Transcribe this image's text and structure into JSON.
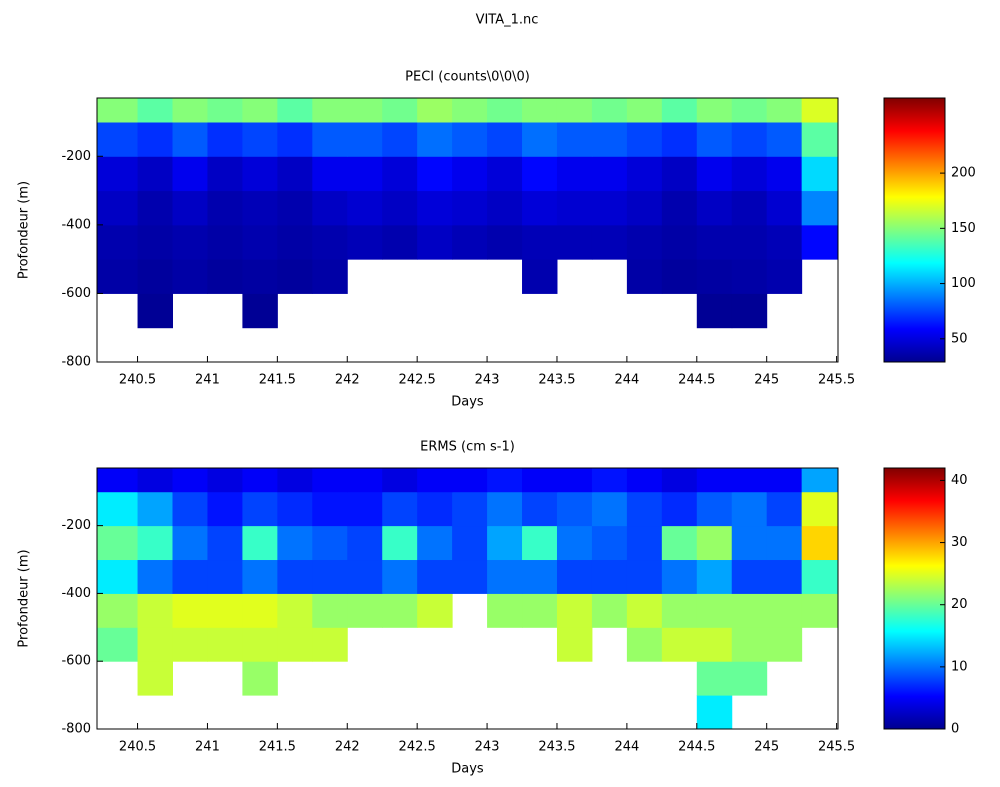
{
  "figure_title": "VITA_1.nc",
  "chart_data": [
    {
      "type": "heatmap",
      "title": "PECI (counts\\0\\0\\0)",
      "xlabel": "Days",
      "ylabel": "Profondeur (m)",
      "colormap": "jet",
      "xlim": [
        240.21,
        245.51
      ],
      "xticks": [
        240.5,
        241,
        241.5,
        242,
        242.5,
        243,
        243.5,
        244,
        244.5,
        245,
        245.5
      ],
      "ylim": [
        -800,
        -30
      ],
      "yticks": [
        -800,
        -600,
        -400,
        -200
      ],
      "clim": [
        29,
        268
      ],
      "cticks": [
        50,
        100,
        150,
        200
      ],
      "x_bins": [
        240.21,
        240.5,
        240.75,
        241,
        241.25,
        241.5,
        241.75,
        242,
        242.25,
        242.5,
        242.75,
        243,
        243.25,
        243.5,
        243.75,
        244,
        244.25,
        244.5,
        244.75,
        245,
        245.25,
        245.51
      ],
      "y_bins": [
        -800,
        -700,
        -600,
        -500,
        -400,
        -300,
        -200,
        -100,
        -30
      ],
      "values": [
        [
          null,
          null,
          null,
          null,
          null,
          null,
          null,
          null,
          null,
          null,
          null,
          null,
          null,
          null,
          null,
          null,
          null,
          null,
          null,
          null,
          null
        ],
        [
          null,
          34,
          null,
          null,
          34,
          null,
          null,
          null,
          null,
          null,
          null,
          null,
          null,
          null,
          null,
          null,
          null,
          34,
          34,
          null,
          null
        ],
        [
          38,
          36,
          38,
          36,
          37,
          36,
          38,
          null,
          null,
          null,
          null,
          null,
          40,
          null,
          null,
          38,
          36,
          37,
          38,
          40,
          null
        ],
        [
          40,
          38,
          40,
          38,
          40,
          38,
          40,
          42,
          40,
          45,
          42,
          40,
          42,
          42,
          42,
          40,
          38,
          40,
          40,
          42,
          60
        ],
        [
          45,
          40,
          45,
          40,
          42,
          40,
          45,
          48,
          45,
          50,
          48,
          45,
          50,
          48,
          48,
          45,
          40,
          45,
          42,
          48,
          90
        ],
        [
          50,
          45,
          55,
          45,
          50,
          45,
          55,
          55,
          50,
          60,
          55,
          50,
          60,
          55,
          55,
          50,
          45,
          55,
          50,
          55,
          110
        ],
        [
          75,
          70,
          80,
          70,
          75,
          70,
          80,
          80,
          75,
          85,
          80,
          75,
          85,
          80,
          80,
          75,
          70,
          80,
          75,
          80,
          140
        ],
        [
          150,
          140,
          150,
          145,
          150,
          140,
          150,
          150,
          145,
          155,
          150,
          145,
          150,
          150,
          145,
          150,
          140,
          150,
          145,
          150,
          170
        ]
      ]
    },
    {
      "type": "heatmap",
      "title": "ERMS (cm s-1)",
      "xlabel": "Days",
      "ylabel": "Profondeur (m)",
      "colormap": "jet",
      "xlim": [
        240.21,
        245.51
      ],
      "xticks": [
        240.5,
        241,
        241.5,
        242,
        242.5,
        243,
        243.5,
        244,
        244.5,
        245,
        245.5
      ],
      "ylim": [
        -800,
        -30
      ],
      "yticks": [
        -800,
        -600,
        -400,
        -200
      ],
      "clim": [
        0,
        42
      ],
      "cticks": [
        0,
        10,
        20,
        30,
        40
      ],
      "x_bins": [
        240.21,
        240.5,
        240.75,
        241,
        241.25,
        241.5,
        241.75,
        242,
        242.25,
        242.5,
        242.75,
        243,
        243.25,
        243.5,
        243.75,
        244,
        244.25,
        244.5,
        244.75,
        245,
        245.25,
        245.51
      ],
      "y_bins": [
        -800,
        -700,
        -600,
        -500,
        -400,
        -300,
        -200,
        -100,
        -30
      ],
      "values": [
        [
          null,
          null,
          null,
          null,
          null,
          null,
          null,
          null,
          null,
          null,
          null,
          null,
          null,
          null,
          null,
          null,
          null,
          15,
          null,
          null,
          null
        ],
        [
          null,
          24,
          null,
          null,
          22,
          null,
          null,
          null,
          null,
          null,
          null,
          null,
          null,
          null,
          null,
          null,
          null,
          20,
          20,
          null,
          null
        ],
        [
          20,
          24,
          24,
          24,
          24,
          24,
          24,
          null,
          null,
          null,
          null,
          null,
          null,
          24,
          null,
          22,
          24,
          24,
          22,
          22,
          null
        ],
        [
          22,
          24,
          25,
          25,
          25,
          24,
          22,
          22,
          22,
          24,
          null,
          22,
          22,
          24,
          22,
          24,
          22,
          22,
          22,
          22,
          22
        ],
        [
          15,
          10,
          8,
          8,
          10,
          8,
          8,
          8,
          10,
          8,
          8,
          10,
          10,
          8,
          8,
          8,
          10,
          12,
          8,
          8,
          18
        ],
        [
          20,
          18,
          10,
          8,
          18,
          10,
          9,
          8,
          18,
          10,
          8,
          12,
          18,
          10,
          9,
          8,
          20,
          22,
          10,
          10,
          28
        ],
        [
          15,
          12,
          8,
          6,
          8,
          7,
          6,
          6,
          8,
          7,
          8,
          10,
          8,
          9,
          10,
          8,
          7,
          9,
          10,
          8,
          25
        ],
        [
          5,
          4,
          5,
          4,
          5,
          4,
          5,
          5,
          4,
          5,
          5,
          6,
          5,
          5,
          6,
          5,
          4,
          5,
          5,
          5,
          12
        ]
      ]
    }
  ]
}
